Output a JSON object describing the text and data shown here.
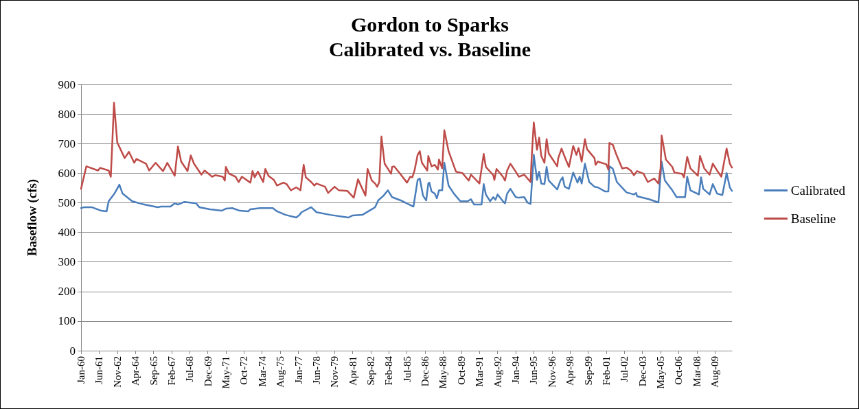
{
  "chart_data": {
    "type": "line",
    "title": "Gordon to Sparks",
    "subtitle": "Calibrated vs. Baseline",
    "ylabel": "Baseflow (cfs)",
    "ylim": [
      0,
      900
    ],
    "yticks": [
      0,
      100,
      200,
      300,
      400,
      500,
      600,
      700,
      800,
      900
    ],
    "xlim": [
      "1960-01",
      "2010-12"
    ],
    "xticks": [
      {
        "value": "1960-01",
        "label": "Jan-60"
      },
      {
        "value": "1961-06",
        "label": "Jun-61"
      },
      {
        "value": "1962-11",
        "label": "Nov-62"
      },
      {
        "value": "1964-04",
        "label": "Apr-64"
      },
      {
        "value": "1965-09",
        "label": "Sep-65"
      },
      {
        "value": "1967-02",
        "label": "Feb-67"
      },
      {
        "value": "1968-07",
        "label": "Jul-68"
      },
      {
        "value": "1969-12",
        "label": "Dec-69"
      },
      {
        "value": "1971-05",
        "label": "May-71"
      },
      {
        "value": "1972-10",
        "label": "Oct-72"
      },
      {
        "value": "1974-03",
        "label": "Mar-74"
      },
      {
        "value": "1975-08",
        "label": "Aug-75"
      },
      {
        "value": "1977-01",
        "label": "Jan-77"
      },
      {
        "value": "1978-06",
        "label": "Jun-78"
      },
      {
        "value": "1979-11",
        "label": "Nov-79"
      },
      {
        "value": "1981-04",
        "label": "Apr-81"
      },
      {
        "value": "1982-09",
        "label": "Sep-82"
      },
      {
        "value": "1984-02",
        "label": "Feb-84"
      },
      {
        "value": "1985-07",
        "label": "Jul-85"
      },
      {
        "value": "1986-12",
        "label": "Dec-86"
      },
      {
        "value": "1988-05",
        "label": "May-88"
      },
      {
        "value": "1989-10",
        "label": "Oct-89"
      },
      {
        "value": "1991-03",
        "label": "Mar-91"
      },
      {
        "value": "1992-08",
        "label": "Aug-92"
      },
      {
        "value": "1994-01",
        "label": "Jan-94"
      },
      {
        "value": "1995-06",
        "label": "Jun-95"
      },
      {
        "value": "1996-11",
        "label": "Nov-96"
      },
      {
        "value": "1998-04",
        "label": "Apr-98"
      },
      {
        "value": "1999-09",
        "label": "Sep-99"
      },
      {
        "value": "2001-02",
        "label": "Feb-01"
      },
      {
        "value": "2002-07",
        "label": "Jul-02"
      },
      {
        "value": "2003-12",
        "label": "Dec-03"
      },
      {
        "value": "2005-05",
        "label": "May-05"
      },
      {
        "value": "2006-10",
        "label": "Oct-06"
      },
      {
        "value": "2008-03",
        "label": "Mar-08"
      },
      {
        "value": "2009-08",
        "label": "Aug-09"
      }
    ],
    "grid": "y",
    "legend": "right",
    "marker": "none",
    "line_style": "solid",
    "series": [
      {
        "name": "Calibrated",
        "color": "#4a7ebb",
        "x": [
          "1960-01",
          "1960-04",
          "1960-11",
          "1961-08",
          "1962-01",
          "1962-03",
          "1962-07",
          "1962-09",
          "1963-01",
          "1963-04",
          "1964-01",
          "1964-10",
          "1966-01",
          "1966-04",
          "1967-01",
          "1967-05",
          "1967-08",
          "1968-02",
          "1969-01",
          "1969-04",
          "1970-02",
          "1971-01",
          "1971-05",
          "1971-11",
          "1972-06",
          "1973-02",
          "1973-04",
          "1974-01",
          "1975-01",
          "1975-05",
          "1976-01",
          "1976-11",
          "1977-02",
          "1977-04",
          "1978-01",
          "1978-06",
          "1979-07",
          "1980-12",
          "1981-04",
          "1982-01",
          "1982-10",
          "1983-01",
          "1983-04",
          "1983-09",
          "1984-01",
          "1984-05",
          "1985-01",
          "1986-01",
          "1986-05",
          "1986-07",
          "1986-10",
          "1987-01",
          "1987-03",
          "1987-04",
          "1987-06",
          "1987-09",
          "1987-11",
          "1988-01",
          "1988-04",
          "1988-06",
          "1988-10",
          "1989-03",
          "1989-09",
          "1990-04",
          "1990-07",
          "1990-10",
          "1991-05",
          "1991-07",
          "1991-09",
          "1992-01",
          "1992-04",
          "1992-06",
          "1992-08",
          "1993-01",
          "1993-03",
          "1993-05",
          "1993-08",
          "1994-01",
          "1994-04",
          "1994-09",
          "1994-12",
          "1995-03",
          "1995-06",
          "1995-09",
          "1995-11",
          "1996-01",
          "1996-04",
          "1996-06",
          "1996-08",
          "1997-04",
          "1997-07",
          "1997-09",
          "1997-11",
          "1998-03",
          "1998-07",
          "1998-11",
          "1999-01",
          "1999-03",
          "1999-06",
          "1999-10",
          "2000-03",
          "2000-06",
          "2001-01",
          "2001-04",
          "2001-05",
          "2001-08",
          "2001-12",
          "2002-09",
          "2003-04",
          "2003-06",
          "2003-07",
          "2004-06",
          "2005-03",
          "2005-06",
          "2005-09",
          "2006-04",
          "2006-08",
          "2007-04",
          "2007-06",
          "2007-09",
          "2008-05",
          "2008-07",
          "2008-09",
          "2009-03",
          "2009-06",
          "2009-10",
          "2010-03",
          "2010-07",
          "2010-10",
          "2010-12"
        ],
        "values": [
          482,
          485,
          485,
          473,
          471,
          505,
          524,
          535,
          561,
          531,
          505,
          496,
          485,
          487,
          487,
          498,
          494,
          503,
          498,
          485,
          478,
          473,
          480,
          482,
          473,
          471,
          478,
          482,
          482,
          471,
          459,
          450,
          459,
          468,
          485,
          468,
          459,
          450,
          457,
          459,
          478,
          485,
          508,
          524,
          542,
          519,
          508,
          487,
          577,
          582,
          524,
          508,
          565,
          568,
          538,
          531,
          515,
          542,
          542,
          635,
          558,
          531,
          505,
          505,
          512,
          494,
          494,
          563,
          528,
          505,
          519,
          510,
          528,
          505,
          498,
          531,
          547,
          519,
          517,
          519,
          501,
          496,
          662,
          577,
          605,
          565,
          563,
          621,
          575,
          545,
          575,
          586,
          554,
          547,
          602,
          568,
          588,
          565,
          632,
          570,
          554,
          552,
          538,
          538,
          623,
          616,
          570,
          535,
          528,
          533,
          522,
          512,
          501,
          639,
          575,
          542,
          519,
          519,
          588,
          542,
          528,
          586,
          547,
          528,
          563,
          531,
          526,
          600,
          552,
          540
        ]
      },
      {
        "name": "Baseline",
        "color": "#be4b48",
        "x": [
          "1960-01",
          "1960-06",
          "1961-05",
          "1961-07",
          "1962-03",
          "1962-05",
          "1962-08",
          "1962-11",
          "1963-06",
          "1963-10",
          "1964-03",
          "1964-05",
          "1965-02",
          "1965-05",
          "1965-11",
          "1966-06",
          "1966-10",
          "1967-05",
          "1967-08",
          "1967-11",
          "1968-05",
          "1968-08",
          "1968-11",
          "1969-06",
          "1969-09",
          "1970-04",
          "1970-07",
          "1971-02",
          "1971-04",
          "1971-05",
          "1971-08",
          "1972-02",
          "1972-05",
          "1972-08",
          "1973-04",
          "1973-06",
          "1973-08",
          "1973-11",
          "1974-04",
          "1974-06",
          "1974-09",
          "1975-02",
          "1975-05",
          "1975-11",
          "1976-02",
          "1976-06",
          "1976-11",
          "1977-03",
          "1977-06",
          "1977-08",
          "1978-01",
          "1978-04",
          "1978-06",
          "1979-02",
          "1979-05",
          "1979-11",
          "1980-03",
          "1980-11",
          "1981-05",
          "1981-09",
          "1982-04",
          "1982-06",
          "1982-10",
          "1983-01",
          "1983-03",
          "1983-05",
          "1983-07",
          "1983-10",
          "1984-04",
          "1984-05",
          "1984-07",
          "1984-11",
          "1985-07",
          "1985-10",
          "1985-12",
          "1986-02",
          "1986-05",
          "1986-07",
          "1986-09",
          "1987-02",
          "1987-03",
          "1987-06",
          "1987-09",
          "1987-12",
          "1988-01",
          "1988-04",
          "1988-06",
          "1988-10",
          "1989-05",
          "1989-11",
          "1990-05",
          "1990-07",
          "1991-03",
          "1991-07",
          "1991-09",
          "1992-04",
          "1992-05",
          "1992-07",
          "1993-01",
          "1993-03",
          "1993-05",
          "1993-08",
          "1994-01",
          "1994-04",
          "1994-09",
          "1995-03",
          "1995-04",
          "1995-06",
          "1995-09",
          "1995-11",
          "1996-01",
          "1996-04",
          "1996-06",
          "1996-08",
          "1997-04",
          "1997-05",
          "1997-08",
          "1997-12",
          "1998-03",
          "1998-07",
          "1998-10",
          "1998-12",
          "1999-03",
          "1999-06",
          "1999-08",
          "2000-03",
          "2000-04",
          "2000-06",
          "2001-02",
          "2001-04",
          "2001-05",
          "2001-08",
          "2001-12",
          "2002-05",
          "2002-09",
          "2003-01",
          "2003-04",
          "2003-07",
          "2004-01",
          "2004-05",
          "2004-11",
          "2005-03",
          "2005-05",
          "2005-06",
          "2005-10",
          "2006-04",
          "2006-06",
          "2007-01",
          "2007-03",
          "2007-06",
          "2007-09",
          "2008-02",
          "2008-04",
          "2008-06",
          "2008-10",
          "2009-03",
          "2009-06",
          "2009-10",
          "2010-02",
          "2010-07",
          "2010-10",
          "2010-12"
        ],
        "values": [
          547,
          623,
          609,
          618,
          609,
          588,
          838,
          704,
          651,
          672,
          635,
          648,
          632,
          609,
          635,
          607,
          635,
          591,
          690,
          639,
          607,
          660,
          632,
          595,
          609,
          588,
          593,
          588,
          575,
          621,
          598,
          588,
          570,
          588,
          568,
          607,
          586,
          605,
          570,
          614,
          591,
          577,
          558,
          568,
          563,
          542,
          552,
          542,
          628,
          586,
          570,
          558,
          565,
          554,
          533,
          554,
          542,
          540,
          517,
          579,
          524,
          614,
          575,
          565,
          554,
          570,
          724,
          632,
          598,
          621,
          623,
          605,
          568,
          588,
          586,
          609,
          662,
          674,
          635,
          609,
          658,
          623,
          628,
          612,
          646,
          616,
          745,
          674,
          605,
          600,
          575,
          595,
          565,
          665,
          621,
          593,
          577,
          614,
          588,
          575,
          609,
          632,
          605,
          588,
          595,
          570,
          651,
          771,
          679,
          720,
          658,
          635,
          715,
          667,
          623,
          651,
          683,
          646,
          621,
          692,
          662,
          685,
          639,
          715,
          681,
          651,
          628,
          639,
          630,
          612,
          702,
          697,
          658,
          616,
          619,
          609,
          593,
          607,
          598,
          570,
          582,
          565,
          616,
          727,
          646,
          621,
          602,
          598,
          586,
          655,
          616,
          598,
          591,
          658,
          616,
          595,
          632,
          609,
          588,
          683,
          632,
          619
        ]
      }
    ]
  }
}
